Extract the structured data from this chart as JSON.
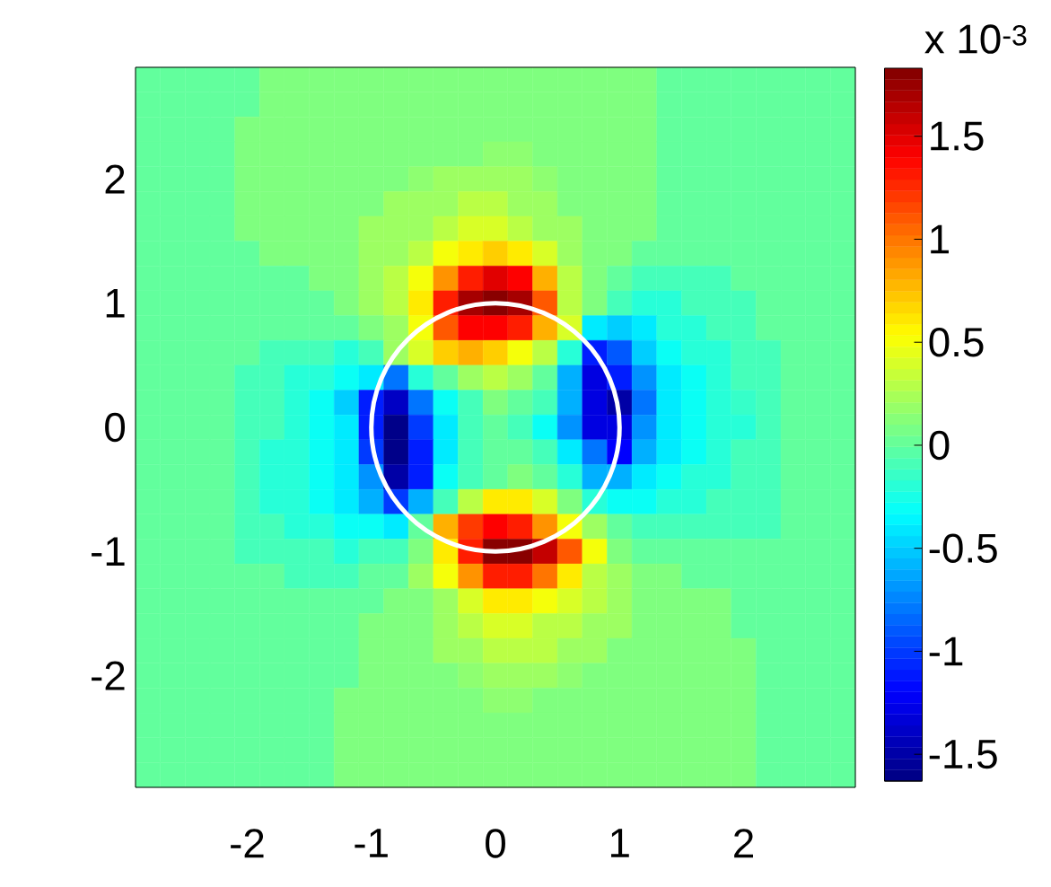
{
  "chart_data": {
    "type": "heatmap",
    "xlim": [
      -2.9,
      2.9
    ],
    "ylim": [
      -2.9,
      2.9
    ],
    "xticks": [
      -2,
      -1,
      0,
      1,
      2
    ],
    "yticks": [
      -2,
      -1,
      0,
      1,
      2
    ],
    "clim": [
      -1.63,
      1.83
    ],
    "cticks": [
      -1.5,
      -1,
      -0.5,
      0,
      0.5,
      1,
      1.5
    ],
    "clabel": "x 10$^{-3}$",
    "cells": [
      [
        0,
        0,
        0,
        0,
        0,
        0.1,
        0.1,
        0.1,
        0.1,
        0.1,
        0.1,
        0.1,
        0.1,
        0.1,
        0.1,
        0.1,
        0.1,
        0.1,
        0.1,
        0.1,
        0.1,
        0,
        0,
        0,
        0,
        0,
        0,
        0,
        0
      ],
      [
        0,
        0,
        0,
        0,
        0,
        0.1,
        0.1,
        0.1,
        0.1,
        0.1,
        0.1,
        0.1,
        0.1,
        0.1,
        0.1,
        0.1,
        0.1,
        0.1,
        0.1,
        0.1,
        0.1,
        0,
        0,
        0,
        0,
        0,
        0,
        0,
        0
      ],
      [
        0,
        0,
        0,
        0,
        0.1,
        0.1,
        0.1,
        0.1,
        0.1,
        0.1,
        0.1,
        0.1,
        0.1,
        0.1,
        0.1,
        0.1,
        0.1,
        0.1,
        0.1,
        0.1,
        0.1,
        0,
        0,
        0,
        0,
        0,
        0,
        0,
        0
      ],
      [
        0,
        0,
        0,
        0,
        0.1,
        0.1,
        0.1,
        0.1,
        0.1,
        0.1,
        0.1,
        0.1,
        0.1,
        0.1,
        0.15,
        0.15,
        0.1,
        0.1,
        0.1,
        0.1,
        0.1,
        0,
        0,
        0,
        0,
        0,
        0,
        0,
        0
      ],
      [
        0,
        0,
        0,
        0,
        0.1,
        0.1,
        0.1,
        0.1,
        0.1,
        0.1,
        0.1,
        0.15,
        0.2,
        0.2,
        0.2,
        0.2,
        0.15,
        0.1,
        0.1,
        0.1,
        0.1,
        0,
        0,
        0,
        0,
        0,
        0,
        0,
        0
      ],
      [
        0,
        0,
        0,
        0,
        0.1,
        0.1,
        0.1,
        0.1,
        0.1,
        0.1,
        0.2,
        0.2,
        0.2,
        0.3,
        0.3,
        0.2,
        0.2,
        0.1,
        0.1,
        0.1,
        0.1,
        0,
        0,
        0,
        0,
        0,
        0,
        0,
        0
      ],
      [
        0,
        0,
        0,
        0,
        0.1,
        0.1,
        0.1,
        0.1,
        0.1,
        0.2,
        0.2,
        0.2,
        0.3,
        0.4,
        0.4,
        0.3,
        0.2,
        0.2,
        0.1,
        0.1,
        0.1,
        0,
        0,
        0,
        0,
        0,
        0,
        0,
        0
      ],
      [
        0,
        0,
        0,
        0,
        0,
        0.1,
        0.1,
        0.1,
        0.1,
        0.2,
        0.2,
        0.3,
        0.5,
        0.6,
        0.7,
        0.6,
        0.4,
        0.2,
        0.1,
        0.1,
        0,
        0,
        0,
        0,
        0,
        0,
        0,
        0,
        0
      ],
      [
        0,
        0,
        0,
        0,
        0,
        0,
        0,
        0.1,
        0.1,
        0.2,
        0.3,
        0.5,
        0.9,
        1.3,
        1.5,
        1.4,
        0.8,
        0.3,
        0.1,
        0,
        -0.1,
        -0.1,
        -0.1,
        -0.1,
        0,
        0,
        0,
        0,
        0
      ],
      [
        0,
        0,
        0,
        0,
        0,
        0,
        0,
        0,
        0.1,
        0.2,
        0.3,
        0.6,
        1.3,
        1.7,
        1.8,
        1.7,
        1.1,
        0.3,
        0.1,
        -0.1,
        -0.2,
        -0.2,
        -0.1,
        -0.1,
        -0.1,
        0,
        0,
        0,
        0
      ],
      [
        0,
        0,
        0,
        0,
        0,
        0,
        0,
        0,
        0,
        0.1,
        0.2,
        0.5,
        1.1,
        1.4,
        1.4,
        1.3,
        0.8,
        0.4,
        -0.4,
        -0.5,
        -0.4,
        -0.2,
        -0.2,
        -0.1,
        -0.1,
        0,
        0,
        0,
        0
      ],
      [
        0,
        0,
        0,
        0,
        0,
        -0.1,
        -0.1,
        -0.1,
        -0.2,
        -0.1,
        0.2,
        0.4,
        0.7,
        0.8,
        0.7,
        0.5,
        0.3,
        -0.2,
        -1.1,
        -0.9,
        -0.5,
        -0.3,
        -0.2,
        -0.2,
        -0.1,
        -0.1,
        0,
        0,
        0
      ],
      [
        0,
        0,
        0,
        0,
        -0.1,
        -0.1,
        -0.2,
        -0.2,
        -0.3,
        -0.4,
        -0.8,
        -0.2,
        0,
        0.2,
        0.3,
        0.2,
        0,
        -0.6,
        -1.3,
        -1.1,
        -0.7,
        -0.4,
        -0.3,
        -0.2,
        -0.1,
        -0.1,
        0,
        0,
        0
      ],
      [
        0,
        0,
        0,
        0,
        -0.1,
        -0.1,
        -0.2,
        -0.3,
        -0.5,
        -1.1,
        -1.4,
        -0.8,
        -0.3,
        -0.1,
        0.1,
        0,
        -0.1,
        -0.6,
        -1.3,
        -1.5,
        -0.8,
        -0.4,
        -0.3,
        -0.2,
        -0.15,
        -0.1,
        0,
        0,
        0
      ],
      [
        0,
        0,
        0,
        0,
        -0.1,
        -0.1,
        -0.2,
        -0.3,
        -0.4,
        -1.1,
        -1.6,
        -1.0,
        -0.4,
        -0.1,
        0,
        -0.1,
        -0.3,
        -0.7,
        -1.3,
        -1.3,
        -0.7,
        -0.4,
        -0.3,
        -0.2,
        -0.2,
        -0.1,
        0,
        0,
        0
      ],
      [
        0,
        0,
        0,
        0,
        -0.1,
        -0.2,
        -0.2,
        -0.3,
        -0.4,
        -1.0,
        -1.6,
        -1.1,
        -0.4,
        -0.1,
        0,
        0,
        -0.1,
        -0.4,
        -0.8,
        -1.2,
        -0.6,
        -0.4,
        -0.3,
        -0.2,
        -0.1,
        -0.1,
        0,
        0,
        0
      ],
      [
        0,
        0,
        0,
        0,
        -0.1,
        -0.2,
        -0.2,
        -0.3,
        -0.4,
        -0.7,
        -1.5,
        -1.1,
        -0.3,
        -0.1,
        0,
        0.1,
        0,
        -0.2,
        -0.6,
        -0.6,
        -0.4,
        -0.3,
        -0.2,
        -0.2,
        -0.1,
        -0.1,
        0,
        0,
        0
      ],
      [
        0,
        0,
        0,
        0,
        -0.1,
        -0.2,
        -0.2,
        -0.3,
        -0.4,
        -0.6,
        -1.0,
        -0.6,
        -0.1,
        0.3,
        0.6,
        0.6,
        0.4,
        0.1,
        -0.2,
        -0.3,
        -0.3,
        -0.2,
        -0.2,
        -0.1,
        -0.1,
        -0.1,
        0,
        0,
        0
      ],
      [
        0,
        0,
        0,
        0,
        -0.1,
        -0.1,
        -0.2,
        -0.2,
        -0.3,
        -0.3,
        -0.4,
        0,
        0.8,
        1.2,
        1.4,
        1.3,
        0.9,
        0.5,
        0.2,
        0,
        -0.1,
        -0.1,
        -0.1,
        -0.1,
        -0.1,
        -0.1,
        0,
        0,
        0
      ],
      [
        0,
        0,
        0,
        0,
        -0.1,
        -0.1,
        -0.1,
        -0.1,
        -0.2,
        -0.1,
        -0.1,
        0.1,
        0.6,
        1.3,
        1.8,
        1.8,
        1.6,
        1.1,
        0.5,
        0.1,
        0,
        0,
        0,
        0,
        0,
        0,
        0,
        0,
        0
      ],
      [
        0,
        0,
        0,
        0,
        0,
        0,
        -0.1,
        -0.1,
        -0.1,
        0,
        0,
        0.2,
        0.5,
        0.9,
        1.3,
        1.3,
        1.0,
        0.6,
        0.3,
        0.2,
        0.1,
        0.1,
        0,
        0,
        0,
        0,
        0,
        0,
        0
      ],
      [
        0,
        0,
        0,
        0,
        0,
        0,
        0,
        0,
        0,
        0,
        0.1,
        0.1,
        0.2,
        0.4,
        0.6,
        0.6,
        0.5,
        0.4,
        0.3,
        0.2,
        0.1,
        0.1,
        0.1,
        0.1,
        0,
        0,
        0,
        0,
        0
      ],
      [
        0,
        0,
        0,
        0,
        0,
        0,
        0,
        0,
        0,
        0.1,
        0.1,
        0.1,
        0.2,
        0.3,
        0.4,
        0.4,
        0.3,
        0.3,
        0.2,
        0.2,
        0.1,
        0.1,
        0.1,
        0.1,
        0,
        0,
        0,
        0,
        0
      ],
      [
        0,
        0,
        0,
        0,
        0,
        0,
        0,
        0,
        0,
        0.1,
        0.1,
        0.1,
        0.2,
        0.2,
        0.3,
        0.3,
        0.3,
        0.2,
        0.2,
        0.1,
        0.1,
        0.1,
        0.1,
        0.1,
        0.1,
        0,
        0,
        0,
        0
      ],
      [
        0,
        0,
        0,
        0,
        0,
        0,
        0,
        0,
        0,
        0.1,
        0.1,
        0.1,
        0.1,
        0.15,
        0.2,
        0.2,
        0.2,
        0.15,
        0.1,
        0.1,
        0.1,
        0.1,
        0.1,
        0.1,
        0.1,
        0,
        0,
        0,
        0
      ],
      [
        0,
        0,
        0,
        0,
        0,
        0,
        0,
        0,
        0.1,
        0.1,
        0.1,
        0.1,
        0.1,
        0.1,
        0.15,
        0.15,
        0.1,
        0.1,
        0.1,
        0.1,
        0.1,
        0.1,
        0.1,
        0.1,
        0.1,
        0,
        0,
        0,
        0
      ],
      [
        0,
        0,
        0,
        0,
        0,
        0,
        0,
        0,
        0.1,
        0.1,
        0.1,
        0.1,
        0.1,
        0.1,
        0.1,
        0.1,
        0.1,
        0.1,
        0.1,
        0.1,
        0.1,
        0.1,
        0.1,
        0.1,
        0.1,
        0,
        0,
        0,
        0
      ],
      [
        0,
        0,
        0,
        0,
        0,
        0,
        0,
        0,
        0.1,
        0.1,
        0.1,
        0.1,
        0.1,
        0.1,
        0.1,
        0.1,
        0.1,
        0.1,
        0.1,
        0.1,
        0.1,
        0.1,
        0.1,
        0.1,
        0.1,
        0,
        0,
        0,
        0
      ],
      [
        0,
        0,
        0,
        0,
        0,
        0,
        0,
        0,
        0.1,
        0.1,
        0.1,
        0.1,
        0.1,
        0.1,
        0.1,
        0.1,
        0.1,
        0.1,
        0.1,
        0.1,
        0.1,
        0.1,
        0.1,
        0.1,
        0.1,
        0,
        0,
        0,
        0
      ]
    ]
  }
}
